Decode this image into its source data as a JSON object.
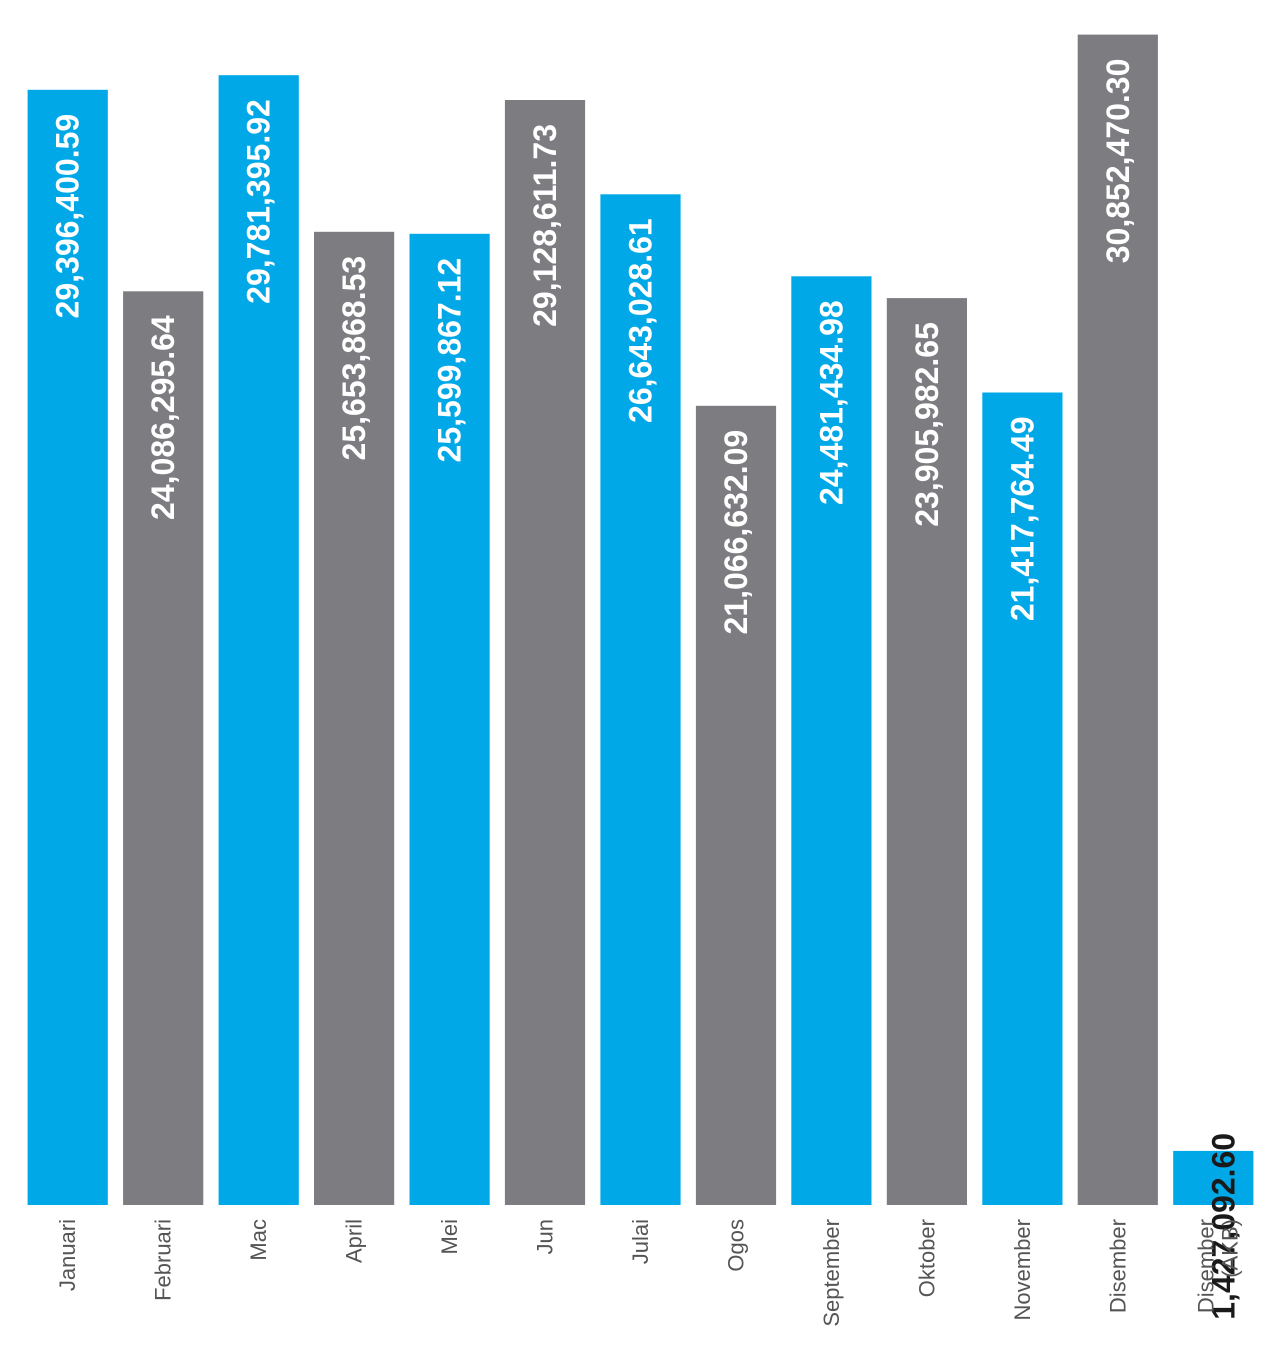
{
  "chart_data": {
    "type": "bar",
    "orientation": "vertical",
    "categories": [
      "Januari",
      "Februari",
      "Mac",
      "April",
      "Mei",
      "Jun",
      "Julai",
      "Ogos",
      "September",
      "Oktober",
      "November",
      "Disember",
      "Disember (AKB)"
    ],
    "values": [
      29396400.59,
      24086295.64,
      29781395.92,
      25653868.53,
      25599867.12,
      29128611.73,
      26643028.61,
      21066632.09,
      24481434.98,
      23905982.65,
      21417764.49,
      30852470.3,
      1427092.6
    ],
    "value_labels": [
      "29,396,400.59",
      "24,086,295.64",
      "29,781,395.92",
      "25,653,868.53",
      "25,599,867.12",
      "29,128,611.73",
      "26,643,028.61",
      "21,066,632.09",
      "24,481,434.98",
      "23,905,982.65",
      "21,417,764.49",
      "30,852,470.30",
      "1,427,092.60"
    ],
    "bar_colors": [
      "#00a8e8",
      "#7d7c80",
      "#00a8e8",
      "#7d7c80",
      "#00a8e8",
      "#7d7c80",
      "#00a8e8",
      "#7d7c80",
      "#00a8e8",
      "#7d7c80",
      "#00a8e8",
      "#7d7c80",
      "#00a8e8"
    ],
    "label_colors": [
      "#ffffff",
      "#ffffff",
      "#ffffff",
      "#ffffff",
      "#ffffff",
      "#ffffff",
      "#ffffff",
      "#ffffff",
      "#ffffff",
      "#ffffff",
      "#ffffff",
      "#ffffff",
      "#1a1a1a"
    ],
    "ylim": [
      0,
      31500000
    ],
    "grid": false,
    "legend": "none",
    "title": "",
    "xlabel": "",
    "ylabel": ""
  }
}
